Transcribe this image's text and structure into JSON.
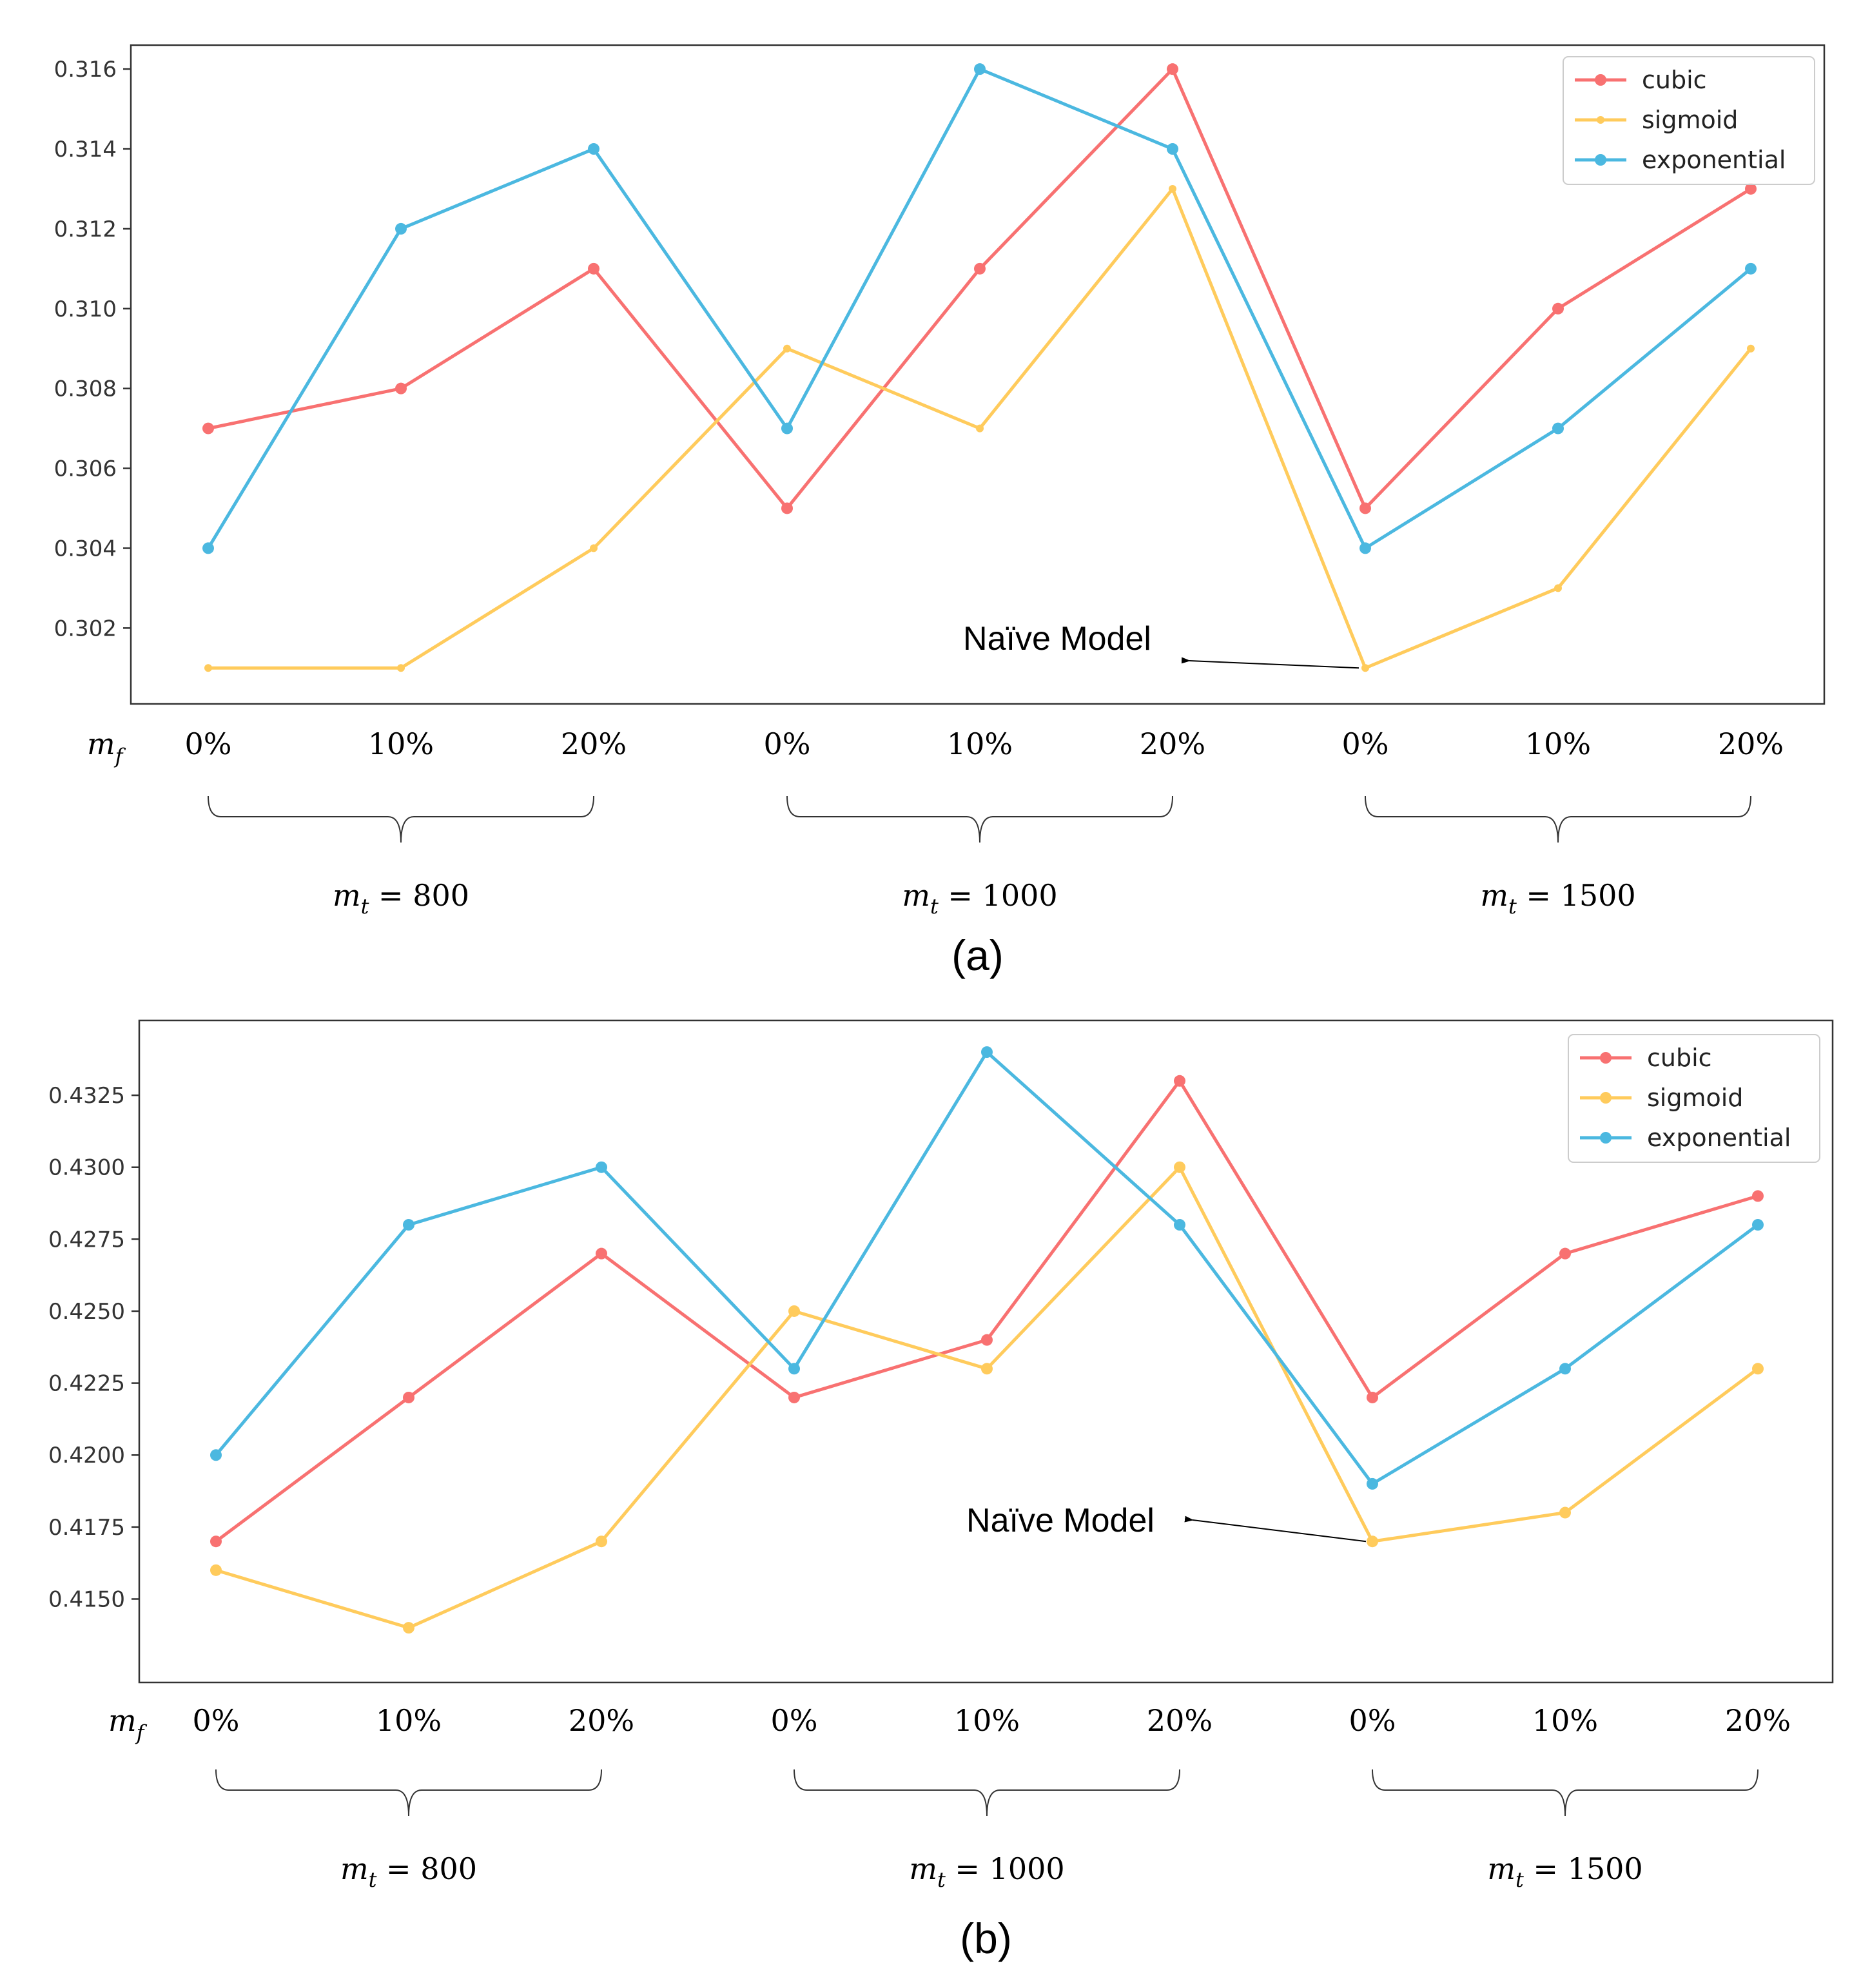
{
  "chart_data": [
    {
      "type": "line",
      "panel_label": "(a)",
      "x_symbol": "m",
      "x_subscript": "f",
      "group_symbol": "m",
      "group_subscript": "t",
      "categories": [
        "0%",
        "10%",
        "20%",
        "0%",
        "10%",
        "20%",
        "0%",
        "10%",
        "20%"
      ],
      "groups": [
        {
          "label": "= 800"
        },
        {
          "label": "= 1000"
        },
        {
          "label": "= 1500"
        }
      ],
      "ylim": [
        0.3001,
        0.3166
      ],
      "yticks": [
        0.302,
        0.304,
        0.306,
        0.308,
        0.31,
        0.312,
        0.314,
        0.316
      ],
      "ytick_labels": [
        "0.302",
        "0.304",
        "0.306",
        "0.308",
        "0.310",
        "0.312",
        "0.314",
        "0.316"
      ],
      "series": [
        {
          "name": "cubic",
          "color": "#F87171",
          "marker_small": false,
          "values": [
            0.307,
            0.308,
            0.311,
            0.305,
            0.311,
            0.316,
            0.305,
            0.31,
            0.313
          ]
        },
        {
          "name": "sigmoid",
          "color": "#FFCB5C",
          "marker_small": true,
          "values": [
            0.301,
            0.301,
            0.304,
            0.309,
            0.307,
            0.313,
            0.301,
            0.303,
            0.309
          ]
        },
        {
          "name": "exponential",
          "color": "#4BB8E0",
          "marker_small": false,
          "values": [
            0.304,
            0.312,
            0.314,
            0.307,
            0.316,
            0.314,
            0.304,
            0.307,
            0.311
          ]
        }
      ],
      "annotation": {
        "text": "Naïve Model",
        "target_index": 6,
        "target_series": "sigmoid"
      },
      "legend_position": "top-right"
    },
    {
      "type": "line",
      "panel_label": "(b)",
      "x_symbol": "m",
      "x_subscript": "f",
      "group_symbol": "m",
      "group_subscript": "t",
      "categories": [
        "0%",
        "10%",
        "20%",
        "0%",
        "10%",
        "20%",
        "0%",
        "10%",
        "20%"
      ],
      "groups": [
        {
          "label": "= 800"
        },
        {
          "label": "= 1000"
        },
        {
          "label": "= 1500"
        }
      ],
      "ylim": [
        0.4121,
        0.4351
      ],
      "yticks": [
        0.415,
        0.4175,
        0.42,
        0.4225,
        0.425,
        0.4275,
        0.43,
        0.4325
      ],
      "ytick_labels": [
        "0.4150",
        "0.4175",
        "0.4200",
        "0.4225",
        "0.4250",
        "0.4275",
        "0.4300",
        "0.4325"
      ],
      "series": [
        {
          "name": "cubic",
          "color": "#F87171",
          "marker_small": false,
          "values": [
            0.417,
            0.422,
            0.427,
            0.422,
            0.424,
            0.433,
            0.422,
            0.427,
            0.429
          ]
        },
        {
          "name": "sigmoid",
          "color": "#FFCB5C",
          "marker_small": false,
          "values": [
            0.416,
            0.414,
            0.417,
            0.425,
            0.423,
            0.43,
            0.417,
            0.418,
            0.423
          ]
        },
        {
          "name": "exponential",
          "color": "#4BB8E0",
          "marker_small": false,
          "values": [
            0.42,
            0.428,
            0.43,
            0.423,
            0.434,
            0.428,
            0.419,
            0.423,
            0.428
          ]
        }
      ],
      "annotation": {
        "text": "Naïve Model",
        "target_index": 6,
        "target_series": "sigmoid"
      },
      "legend_position": "top-right"
    }
  ]
}
